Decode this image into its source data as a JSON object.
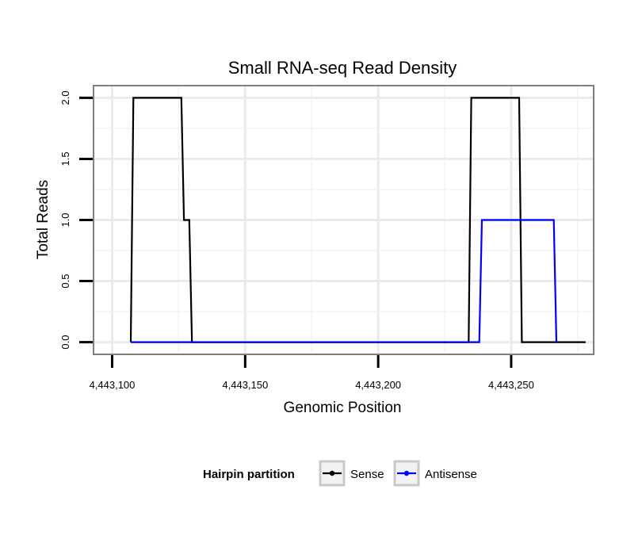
{
  "chart_data": {
    "type": "line",
    "title": "Small RNA-seq Read Density",
    "xlabel": "Genomic Position",
    "ylabel": "Total Reads",
    "xlim": [
      4443093,
      4443281
    ],
    "ylim": [
      -0.1,
      2.1
    ],
    "x_ticks": [
      4443100,
      4443150,
      4443200,
      4443250
    ],
    "x_tick_labels": [
      "4,443,100",
      "4,443,150",
      "4,443,200",
      "4,443,250"
    ],
    "y_ticks": [
      0,
      0.5,
      1,
      1.5,
      2
    ],
    "y_tick_labels": [
      "0.0",
      "0.5",
      "1.0",
      "1.5",
      "2.0"
    ],
    "grid": true,
    "legend": {
      "title": "Hairpin partition",
      "position": "bottom",
      "entries": [
        "Sense",
        "Antisense"
      ]
    },
    "series": [
      {
        "name": "Sense",
        "color": "#000000",
        "x": [
          4443107,
          4443108,
          4443126,
          4443127,
          4443129,
          4443130,
          4443234,
          4443235,
          4443253,
          4443254,
          4443278
        ],
        "y": [
          0,
          2,
          2,
          1,
          1,
          0,
          0,
          2,
          2,
          0,
          0
        ]
      },
      {
        "name": "Antisense",
        "color": "#0000ff",
        "x": [
          4443107,
          4443238,
          4443239,
          4443266,
          4443267
        ],
        "y": [
          0,
          0,
          1,
          1,
          0
        ]
      }
    ]
  }
}
